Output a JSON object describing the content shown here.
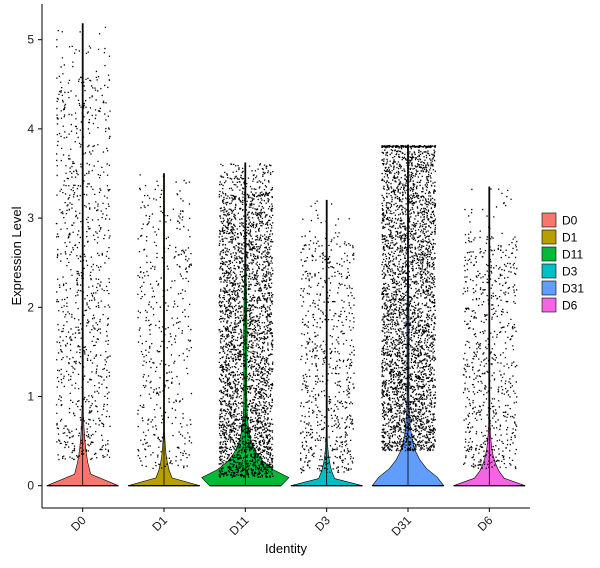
{
  "chart_data": {
    "type": "violin",
    "xlabel": "Identity",
    "ylabel": "Expression Level",
    "ylim": [
      -0.25,
      5.4
    ],
    "yticks": [
      0,
      1,
      2,
      3,
      4,
      5
    ],
    "categories": [
      "D0",
      "D1",
      "D11",
      "D3",
      "D31",
      "D6"
    ],
    "legend": {
      "position": "right",
      "entries": [
        "D0",
        "D1",
        "D11",
        "D3",
        "D31",
        "D6"
      ]
    },
    "grid": false,
    "series": [
      {
        "name": "D0",
        "color": "#F8766D",
        "max": 5.18,
        "nonzero_range": [
          0.3,
          4.6
        ],
        "zero_fraction": 0.97,
        "approx_nonzero_cells": 900
      },
      {
        "name": "D1",
        "color": "#B79F00",
        "max": 3.5,
        "nonzero_range": [
          0.2,
          3.3
        ],
        "zero_fraction": 0.97,
        "approx_nonzero_cells": 450
      },
      {
        "name": "D11",
        "color": "#00BA38",
        "max": 3.62,
        "nonzero_range": [
          0.1,
          3.3
        ],
        "zero_fraction": 0.6,
        "approx_nonzero_cells": 3200
      },
      {
        "name": "D3",
        "color": "#00BFC4",
        "max": 3.2,
        "nonzero_range": [
          0.15,
          2.8
        ],
        "zero_fraction": 0.97,
        "approx_nonzero_cells": 700
      },
      {
        "name": "D31",
        "color": "#619CFF",
        "max": 3.82,
        "nonzero_range": [
          0.4,
          3.8
        ],
        "zero_fraction": 0.75,
        "approx_nonzero_cells": 3400
      },
      {
        "name": "D6",
        "color": "#F564E3",
        "max": 3.35,
        "nonzero_range": [
          0.2,
          2.8
        ],
        "zero_fraction": 0.9,
        "approx_nonzero_cells": 700
      }
    ]
  }
}
